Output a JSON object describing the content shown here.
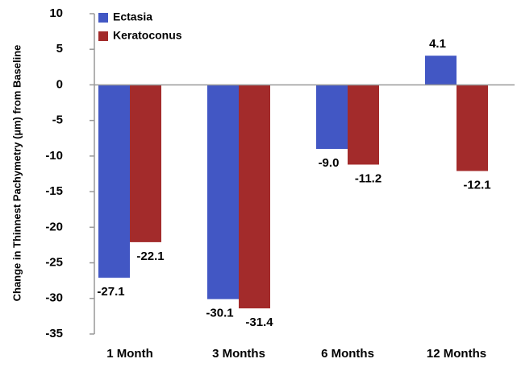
{
  "chart_data": {
    "type": "bar",
    "y_label": "Change in Thinnest Pachymetry (µm) from Baseline",
    "categories": [
      "1 Month",
      "3 Months",
      "6 Months",
      "12 Months"
    ],
    "series": [
      {
        "name": "Ectasia",
        "color": "#4257c4",
        "values": [
          -27.1,
          -30.1,
          -9.0,
          4.1
        ],
        "value_labels": [
          "-27.1",
          "-30.1",
          "-9.0",
          "4.1"
        ]
      },
      {
        "name": "Keratoconus",
        "color": "#a32b2b",
        "values": [
          -22.1,
          -31.4,
          -11.2,
          -12.1
        ],
        "value_labels": [
          "-22.1",
          "-31.4",
          "-11.2",
          "-12.1"
        ]
      }
    ],
    "ylim": [
      -35,
      10
    ],
    "yticks": [
      -35,
      -30,
      -25,
      -20,
      -15,
      -10,
      -5,
      0,
      5,
      10
    ],
    "legend": "upper-left"
  }
}
